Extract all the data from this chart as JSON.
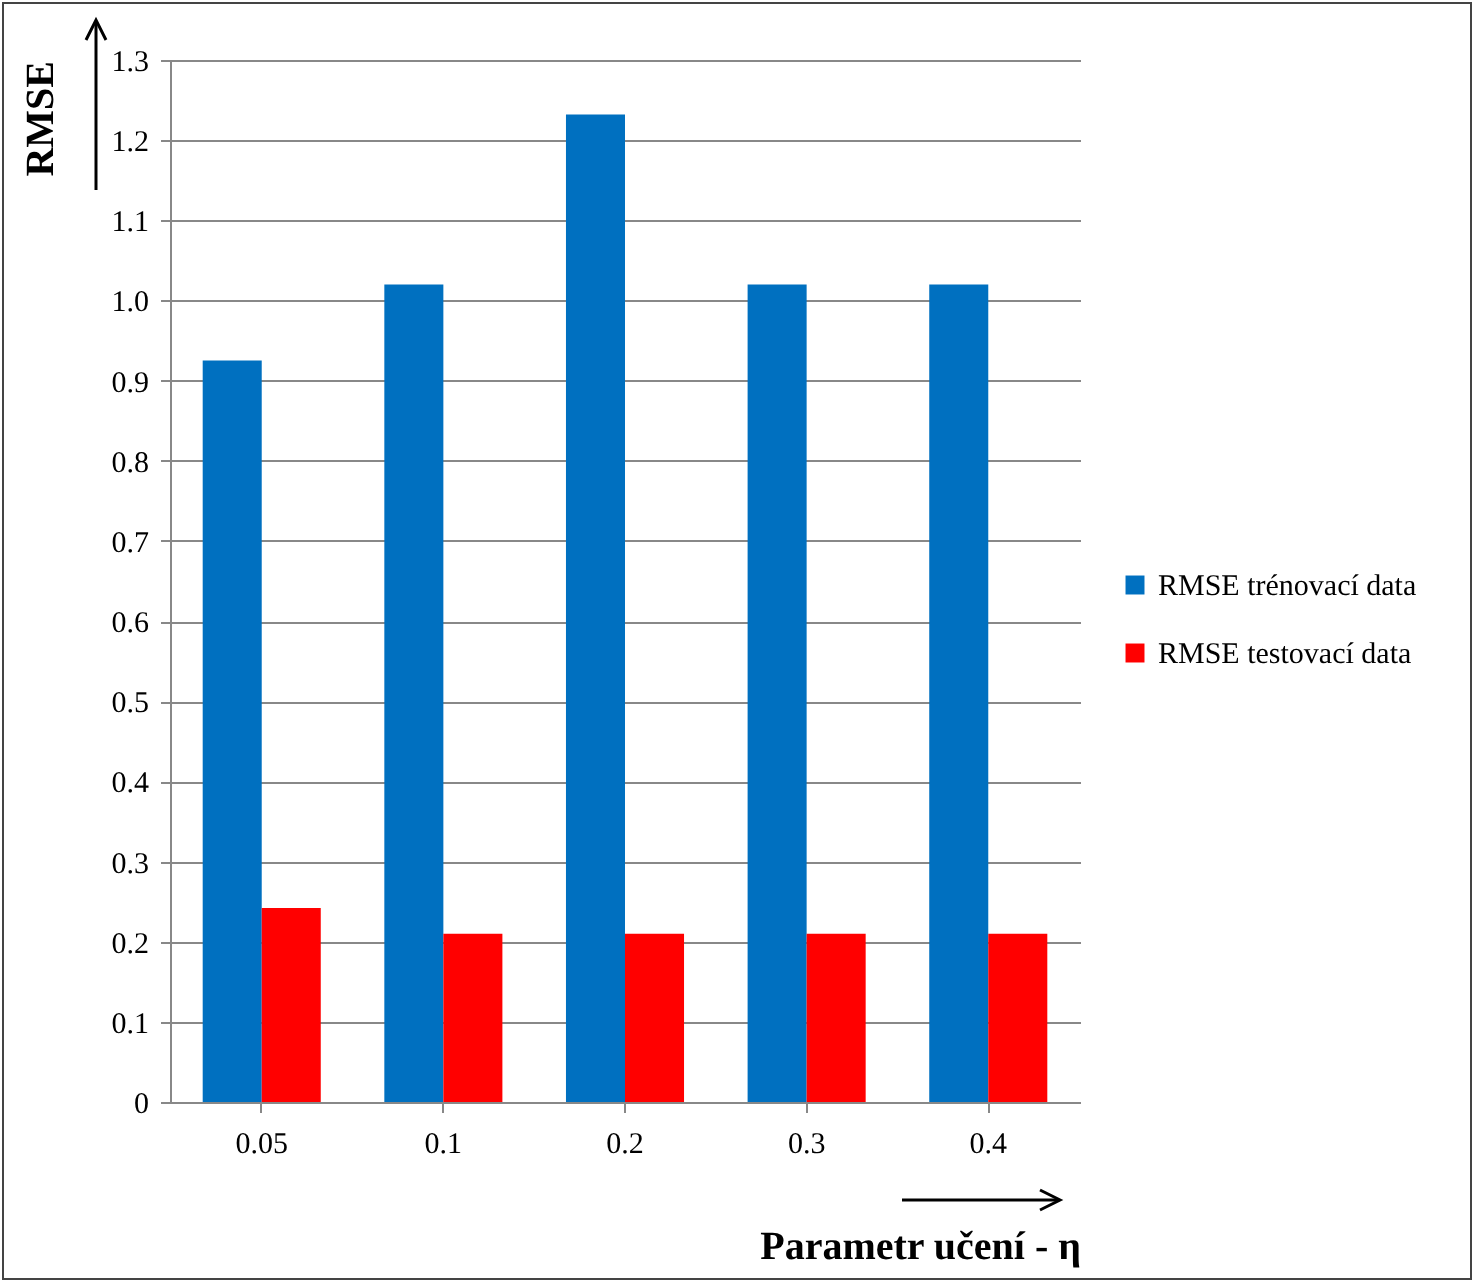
{
  "chart_data": {
    "type": "bar",
    "xlabel": "Parametr učení - η",
    "ylabel": "RMSE",
    "categories": [
      "0.05",
      "0.1",
      "0.2",
      "0.3",
      "0.4"
    ],
    "series": [
      {
        "name": "RMSE trénovací data",
        "color": "#0070c0",
        "values": [
          0.925,
          1.02,
          1.232,
          1.02,
          1.02
        ]
      },
      {
        "name": "RMSE testovací data",
        "color": "#ff0000",
        "values": [
          0.242,
          0.21,
          0.21,
          0.21,
          0.21
        ]
      }
    ],
    "ylim": [
      0,
      1.3
    ],
    "yticks": [
      0,
      0.1,
      0.2,
      0.3,
      0.4,
      0.5,
      0.6,
      0.7,
      0.8,
      0.9,
      {
        "value": 1,
        "label": "1.0"
      },
      1.1,
      1.2,
      1.3
    ],
    "grid": "y",
    "legend": "right"
  }
}
